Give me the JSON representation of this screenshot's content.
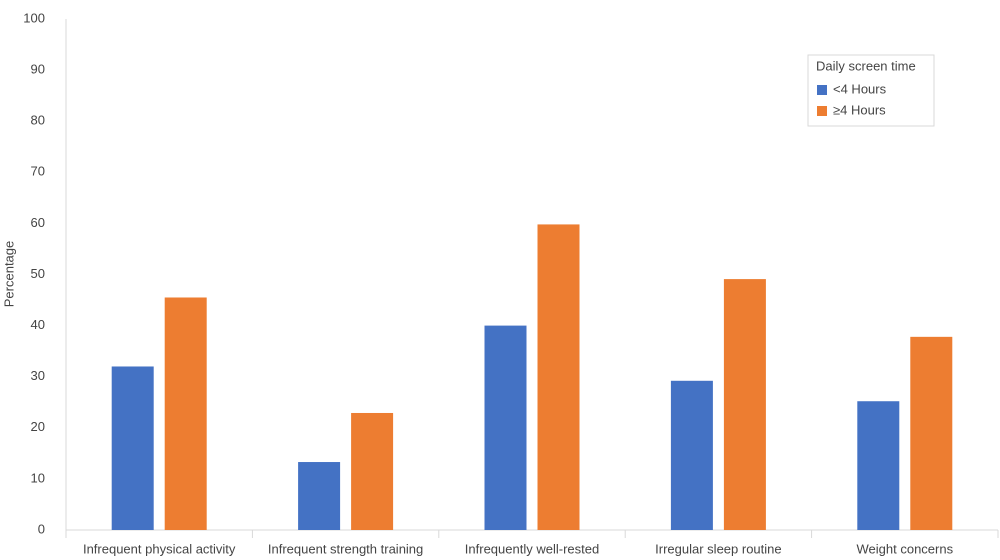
{
  "chart_data": {
    "type": "bar",
    "y_label": "Percentage",
    "categories": [
      "Infrequent physical activity",
      "Infrequent strength training",
      "Infrequently well-rested",
      "Irregular sleep routine",
      "Weight concerns"
    ],
    "series": [
      {
        "name": "<4 Hours",
        "color": "#4472c4",
        "values": [
          32,
          13.3,
          40,
          29.2,
          25.2
        ]
      },
      {
        "name": "≥4 Hours",
        "color": "#ed7d31",
        "values": [
          45.5,
          22.9,
          59.8,
          49.1,
          37.8
        ]
      }
    ],
    "legend_title": "Daily screen time",
    "legend": "upper right",
    "ylim": [
      0,
      100
    ],
    "yticks": [
      0,
      10,
      20,
      30,
      40,
      50,
      60,
      70,
      80,
      90,
      100
    ],
    "grid": false
  }
}
